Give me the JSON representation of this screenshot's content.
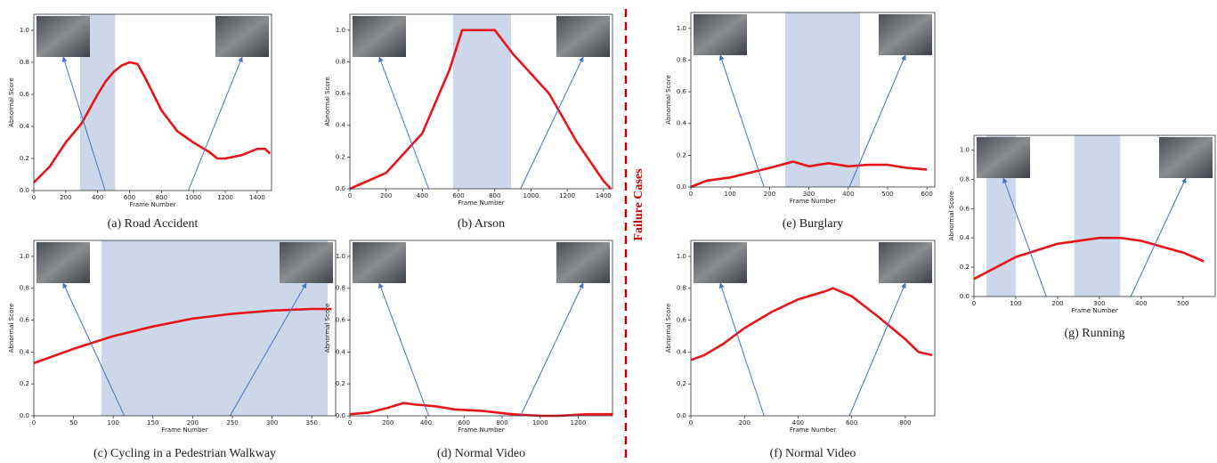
{
  "divider_label": "Failure Cases",
  "chart_data": [
    {
      "type": "line",
      "title": "(a) Road Accident",
      "xlabel": "Frame Number",
      "ylabel": "Abnormal Score",
      "x": [
        0,
        100,
        200,
        300,
        400,
        450,
        500,
        550,
        600,
        650,
        700,
        800,
        900,
        1000,
        1100,
        1150,
        1200,
        1300,
        1400,
        1450,
        1480
      ],
      "values": [
        0.05,
        0.15,
        0.3,
        0.42,
        0.6,
        0.68,
        0.74,
        0.78,
        0.8,
        0.79,
        0.7,
        0.5,
        0.37,
        0.3,
        0.24,
        0.2,
        0.2,
        0.22,
        0.26,
        0.26,
        0.23
      ],
      "color": "#e8141c",
      "highlight_color": "#ccd7ea",
      "highlights": [
        [
          290,
          510
        ]
      ],
      "xlim": [
        0,
        1490
      ],
      "ylim": [
        0,
        1.1
      ],
      "xticks": [
        0,
        200,
        400,
        600,
        800,
        1000,
        1200,
        1400
      ],
      "yticks": [
        {
          "value": 0,
          "label": "0.0"
        },
        0.2,
        0.4,
        0.6,
        0.8,
        {
          "value": 1,
          "label": "1.0"
        }
      ]
    },
    {
      "type": "line",
      "title": "(b) Arson",
      "xlabel": "Frame Number",
      "ylabel": "Abnormal Score",
      "x": [
        0,
        200,
        400,
        550,
        620,
        800,
        900,
        1100,
        1250,
        1400,
        1440
      ],
      "values": [
        0,
        0.1,
        0.35,
        0.75,
        1,
        1,
        0.85,
        0.6,
        0.3,
        0.05,
        0
      ],
      "color": "#e8141c",
      "highlight_color": "#ccd7ea",
      "highlights": [
        [
          570,
          890
        ]
      ],
      "xlim": [
        0,
        1450
      ],
      "ylim": [
        0,
        1.1
      ],
      "xticks": [
        0,
        200,
        400,
        600,
        800,
        1000,
        1200,
        1400
      ],
      "yticks": [
        {
          "value": 0,
          "label": "0.0"
        },
        0.2,
        0.4,
        0.6,
        0.8,
        {
          "value": 1,
          "label": "1.0"
        }
      ]
    },
    {
      "type": "line",
      "title": "(c) Cycling  in a Pedestrian  Walkway",
      "xlabel": "Frame Number",
      "ylabel": "Abnormal Score",
      "x": [
        0,
        50,
        100,
        150,
        200,
        250,
        300,
        350,
        375
      ],
      "values": [
        0.33,
        0.42,
        0.5,
        0.56,
        0.61,
        0.64,
        0.66,
        0.67,
        0.67
      ],
      "color": "#e8141c",
      "highlight_color": "#ccd7ea",
      "highlights": [
        [
          85,
          370
        ]
      ],
      "xlim": [
        0,
        380
      ],
      "ylim": [
        0,
        1.1
      ],
      "xticks": [
        0,
        50,
        100,
        150,
        200,
        250,
        300,
        350
      ],
      "yticks": [
        {
          "value": 0,
          "label": "0.0"
        },
        0.2,
        0.4,
        0.6,
        0.8,
        {
          "value": 1,
          "label": "1.0"
        }
      ]
    },
    {
      "type": "line",
      "title": "(d) Normal Video",
      "xlabel": "Frame Number",
      "ylabel": "Abnormal Score",
      "x": [
        0,
        100,
        200,
        280,
        350,
        450,
        550,
        700,
        850,
        1000,
        1100,
        1250,
        1380
      ],
      "values": [
        0.01,
        0.02,
        0.05,
        0.08,
        0.07,
        0.06,
        0.04,
        0.03,
        0.01,
        0,
        0,
        0.01,
        0.01
      ],
      "color": "#e8141c",
      "highlight_color": "#ccd7ea",
      "highlights": [],
      "xlim": [
        0,
        1380
      ],
      "ylim": [
        0,
        1.1
      ],
      "xticks": [
        0,
        200,
        400,
        600,
        800,
        1000,
        1200
      ],
      "yticks": [
        {
          "value": 0,
          "label": "0.0"
        },
        0.2,
        0.4,
        0.6,
        0.8,
        {
          "value": 1,
          "label": "1.0"
        }
      ]
    },
    {
      "type": "line",
      "title": "(e) Burglary",
      "xlabel": "Frame Number",
      "ylabel": "Abnormal Score",
      "x": [
        0,
        40,
        100,
        150,
        200,
        260,
        300,
        350,
        400,
        450,
        500,
        550,
        600
      ],
      "values": [
        0,
        0.04,
        0.06,
        0.09,
        0.12,
        0.16,
        0.13,
        0.15,
        0.13,
        0.14,
        0.14,
        0.12,
        0.11
      ],
      "color": "#e8141c",
      "highlight_color": "#ccd7ea",
      "highlights": [
        [
          240,
          430
        ]
      ],
      "xlim": [
        0,
        620
      ],
      "ylim": [
        0,
        1.1
      ],
      "xticks": [
        0,
        100,
        200,
        300,
        400,
        500,
        600
      ],
      "yticks": [
        {
          "value": 0,
          "label": "0.0"
        },
        0.2,
        0.4,
        0.6,
        0.8,
        {
          "value": 1,
          "label": "1.0"
        }
      ]
    },
    {
      "type": "line",
      "title": "(f) Normal Video",
      "xlabel": "Frame Number",
      "ylabel": "Abnormal Score",
      "x": [
        0,
        50,
        120,
        200,
        300,
        400,
        500,
        530,
        600,
        700,
        800,
        850,
        900
      ],
      "values": [
        0.35,
        0.38,
        0.45,
        0.55,
        0.65,
        0.73,
        0.78,
        0.8,
        0.75,
        0.62,
        0.48,
        0.4,
        0.38
      ],
      "color": "#e8141c",
      "highlight_color": "#ccd7ea",
      "highlights": [],
      "xlim": [
        0,
        910
      ],
      "ylim": [
        0,
        1.1
      ],
      "xticks": [
        0,
        200,
        400,
        600,
        800
      ],
      "yticks": [
        {
          "value": 0,
          "label": "0.0"
        },
        0.2,
        0.4,
        0.6,
        0.8,
        {
          "value": 1,
          "label": "1.0"
        }
      ]
    },
    {
      "type": "line",
      "title": "(g)  Running",
      "xlabel": "Frame Number",
      "ylabel": "Abnormal Score",
      "x": [
        0,
        100,
        200,
        300,
        350,
        400,
        450,
        500,
        550
      ],
      "values": [
        0.12,
        0.27,
        0.36,
        0.4,
        0.4,
        0.38,
        0.34,
        0.3,
        0.24
      ],
      "color": "#e8141c",
      "highlight_color": "#ccd7ea",
      "highlights": [
        [
          30,
          100
        ],
        [
          240,
          350
        ]
      ],
      "xlim": [
        0,
        577
      ],
      "ylim": [
        0,
        1.1
      ],
      "xticks": [
        0,
        100,
        200,
        300,
        400,
        500
      ],
      "yticks": [
        {
          "value": 0,
          "label": "0.0"
        },
        0.2,
        0.4,
        0.6,
        0.8,
        {
          "value": 1,
          "label": "1.0"
        }
      ]
    }
  ]
}
